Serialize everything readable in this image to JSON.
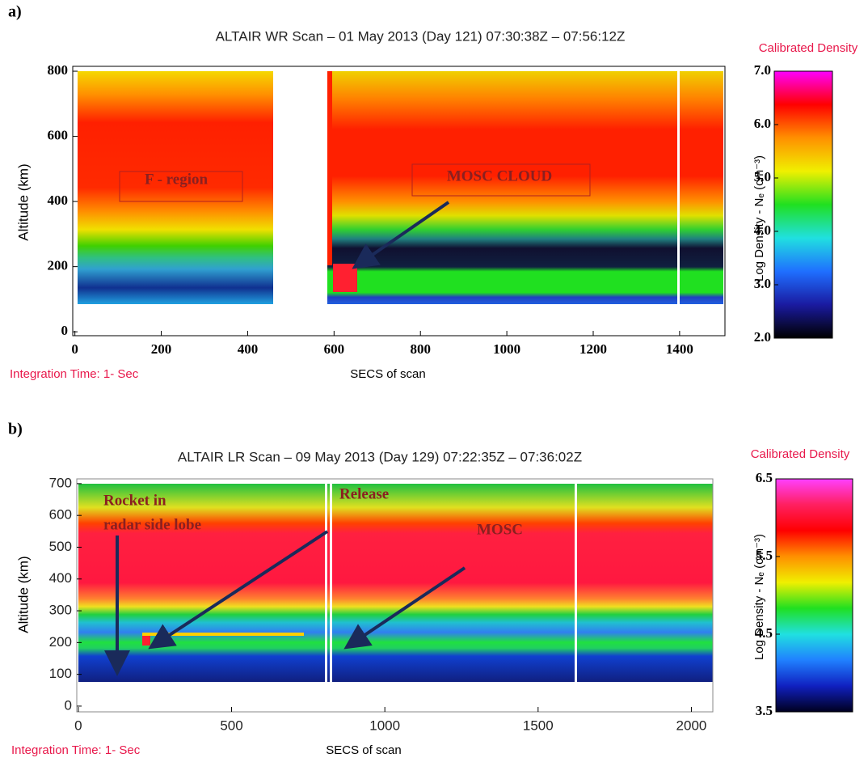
{
  "chart_data": [
    {
      "type": "heatmap",
      "panel": "a)",
      "title": "ALTAIR WR Scan – 01 May 2013 (Day 121) 07:30:38Z – 07:56:12Z",
      "xlabel": "SECS of scan",
      "ylabel": "Altitude (km)",
      "note": "Integration Time: 1- Sec",
      "xlim": [
        -5,
        1505
      ],
      "xticks": [
        0,
        200,
        400,
        600,
        800,
        1000,
        1200,
        1400
      ],
      "ylim": [
        -12,
        815
      ],
      "yticks": [
        0,
        200,
        400,
        600,
        800
      ],
      "colorbar": {
        "title": "Calibrated Density",
        "label": "Log Density - Nₑ (cm⁻³)",
        "lim": [
          2,
          7
        ],
        "ticks": [
          {
            "value": 2,
            "label": "2.0"
          },
          {
            "value": 3,
            "label": "3.0"
          },
          {
            "value": 4,
            "label": "4.0"
          },
          {
            "value": 5,
            "label": "5.0"
          },
          {
            "value": 6,
            "label": "6.0"
          },
          {
            "value": 7,
            "label": "7.0"
          }
        ],
        "colors": [
          "#000000",
          "#1a1aa0",
          "#1f6fff",
          "#20e0e0",
          "#20e020",
          "#f0f000",
          "#ff9000",
          "#ff0000",
          "#ff00ff"
        ]
      },
      "annotations": [
        "F - region",
        "MOSC CLOUD"
      ]
    },
    {
      "type": "heatmap",
      "panel": "b)",
      "title": "ALTAIR LR Scan – 09 May 2013 (Day 129) 07:22:35Z – 07:36:02Z",
      "xlabel": "SECS of scan",
      "ylabel": "Altitude (km)",
      "note": "Integration Time: 1- Sec",
      "xlim": [
        -5,
        2070
      ],
      "xticks": [
        0,
        500,
        1000,
        1500,
        2000
      ],
      "ylim": [
        -18,
        715
      ],
      "yticks": [
        0,
        100,
        200,
        300,
        400,
        500,
        600,
        700
      ],
      "colorbar": {
        "title": "Calibrated Density",
        "label": "Log Density - Nₑ (cm⁻³)",
        "lim": [
          3.5,
          6.5
        ],
        "ticks": [
          3.5,
          4.5,
          5.5,
          6.5
        ],
        "colors": [
          "#000020",
          "#1020c0",
          "#2080ff",
          "#20e0e0",
          "#20e020",
          "#f0f000",
          "#ff9000",
          "#ff0000",
          "#ff2060",
          "#ff40ff"
        ]
      },
      "annotations": [
        "Rocket in",
        "radar side lobe",
        "Release",
        "MOSC"
      ]
    }
  ]
}
